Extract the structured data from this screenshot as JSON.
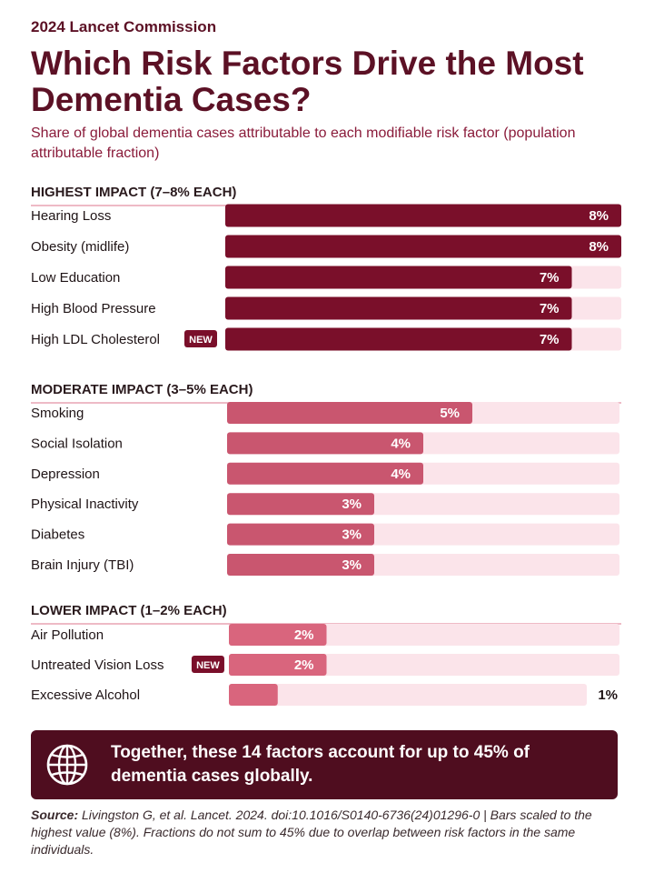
{
  "header": {
    "kicker": "2024 Lancet Commission",
    "title": "Which Risk Factors Drive the Most Dementia Cases?",
    "subtitle": "Share of global dementia cases attributable to each modifiable risk factor (population attributable fraction)"
  },
  "chart_data": {
    "type": "bar",
    "orientation": "horizontal",
    "title": "Which Risk Factors Drive the Most Dementia Cases?",
    "unit": "%",
    "xlim": [
      0,
      8
    ],
    "groups": [
      {
        "label": "HIGHEST IMPACT (7–8% EACH)",
        "color": "#7a0f2a",
        "items": [
          {
            "label": "Hearing Loss",
            "value": 8,
            "value_label": "8%"
          },
          {
            "label": "Obesity (midlife)",
            "value": 8,
            "value_label": "8%"
          },
          {
            "label": "Low Education",
            "value": 7,
            "value_label": "7%"
          },
          {
            "label": "High Blood Pressure",
            "value": 7,
            "value_label": "7%"
          },
          {
            "label": "High LDL Cholesterol",
            "value": 7,
            "value_label": "7%",
            "badge": "NEW"
          }
        ]
      },
      {
        "label": "MODERATE IMPACT (3–5% EACH)",
        "color": "#c9566f",
        "items": [
          {
            "label": "Smoking",
            "value": 5,
            "value_label": "5%"
          },
          {
            "label": "Social Isolation",
            "value": 4,
            "value_label": "4%"
          },
          {
            "label": "Depression",
            "value": 4,
            "value_label": "4%"
          },
          {
            "label": "Physical Inactivity",
            "value": 3,
            "value_label": "3%"
          },
          {
            "label": "Diabetes",
            "value": 3,
            "value_label": "3%"
          },
          {
            "label": "Brain Injury (TBI)",
            "value": 3,
            "value_label": "3%"
          }
        ]
      },
      {
        "label": "LOWER IMPACT (1–2% EACH)",
        "color": "#d9657d",
        "items": [
          {
            "label": "Air Pollution",
            "value": 2,
            "value_label": "2%"
          },
          {
            "label": "Untreated Vision Loss",
            "value": 2,
            "value_label": "2%",
            "badge": "NEW"
          },
          {
            "label": "Excessive Alcohol",
            "value": 1,
            "value_label": "1%"
          }
        ]
      }
    ],
    "track_color": "#fbe4ea",
    "badge_color": "#7a0f2a",
    "divider_color": "#e8a3b3"
  },
  "callout": {
    "icon": "globe-icon",
    "text": "Together, these 14 factors account for up to 45% of dementia cases globally."
  },
  "source": {
    "label": "Source:",
    "text": " Livingston G, et al. Lancet. 2024. doi:10.1016/S0140-6736(24)01296-0  |  Bars scaled to the highest value (8%). Fractions do not sum to 45% due to overlap between risk factors in the same individuals."
  }
}
